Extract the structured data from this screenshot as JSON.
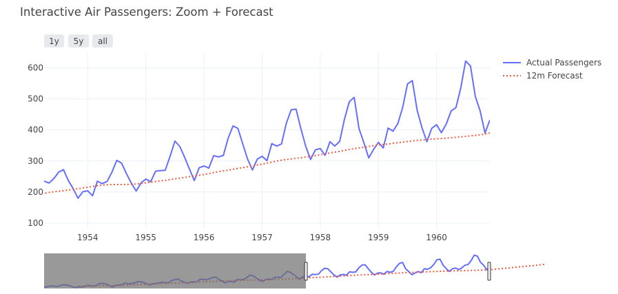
{
  "title": "Interactive Air Passengers: Zoom + Forecast",
  "range_buttons": [
    "1y",
    "5y",
    "all"
  ],
  "legend": [
    {
      "label": "Actual Passengers",
      "color": "#636efa",
      "dash": "solid"
    },
    {
      "label": "12m Forecast",
      "color": "#ef553b",
      "dash": "dot"
    }
  ],
  "chart_data": {
    "type": "line",
    "title": "Interactive Air Passengers: Zoom + Forecast",
    "x_start": "1949-01",
    "x_step": "month",
    "visible_x_range": [
      "1953-04",
      "1960-12"
    ],
    "ylim": [
      80,
      650
    ],
    "yticks": [
      100,
      200,
      300,
      400,
      500,
      600
    ],
    "xticks": [
      "1954",
      "1955",
      "1956",
      "1957",
      "1958",
      "1959",
      "1960"
    ],
    "grid": true,
    "legend_position": "top-right",
    "rangeslider": true,
    "rangeslider_selection": [
      "1949-01",
      "1956-01"
    ],
    "series": [
      {
        "name": "Actual Passengers",
        "color": "#636efa",
        "values": [
          112,
          118,
          132,
          129,
          121,
          135,
          148,
          148,
          136,
          119,
          104,
          118,
          115,
          126,
          141,
          135,
          125,
          149,
          170,
          170,
          158,
          133,
          114,
          140,
          145,
          150,
          178,
          163,
          172,
          178,
          199,
          199,
          184,
          162,
          146,
          166,
          171,
          180,
          193,
          181,
          183,
          218,
          230,
          242,
          209,
          191,
          172,
          194,
          196,
          196,
          236,
          235,
          229,
          243,
          264,
          272,
          237,
          211,
          180,
          201,
          204,
          188,
          235,
          227,
          234,
          264,
          302,
          293,
          259,
          229,
          203,
          229,
          242,
          233,
          267,
          269,
          270,
          315,
          364,
          347,
          312,
          274,
          237,
          278,
          284,
          277,
          317,
          313,
          318,
          374,
          413,
          405,
          355,
          306,
          271,
          306,
          315,
          301,
          356,
          348,
          355,
          422,
          465,
          467,
          404,
          347,
          305,
          336,
          340,
          318,
          362,
          348,
          363,
          435,
          491,
          505,
          404,
          359,
          310,
          337,
          360,
          342,
          406,
          396,
          420,
          472,
          548,
          559,
          463,
          407,
          362,
          405,
          417,
          391,
          419,
          461,
          472,
          535,
          622,
          606,
          508,
          461,
          390,
          432
        ]
      },
      {
        "name": "12m Forecast",
        "color": "#ef553b",
        "offset": 11,
        "values": [
          126.7,
          126.9,
          127.6,
          128.3,
          128.8,
          129.8,
          131.0,
          132.2,
          133.1,
          133.7,
          134.4,
          135.3,
          136.6,
          138.3,
          140.5,
          142.8,
          145.7,
          148.6,
          151.2,
          153.5,
          155.4,
          157.4,
          159.5,
          161.4,
          163.3,
          165.5,
          167.6,
          169.8,
          171.9,
          174.0,
          175.8,
          177.2,
          178.5,
          180.1,
          181.8,
          183.5,
          185.6,
          188.1,
          190.4,
          193.2,
          195.9,
          198.6,
          200.8,
          202.6,
          204.5,
          206.4,
          208.3,
          210.6,
          213.3,
          215.4,
          217.9,
          220.3,
          222.1,
          223.5,
          224.0,
          224.2,
          224.1,
          224.4,
          225.0,
          226.0,
          227.5,
          229.8,
          232.0,
          233.8,
          235.8,
          237.9,
          240.2,
          242.6,
          244.5,
          246.8,
          249.6,
          251.8,
          254.0,
          256.5,
          259.5,
          262.7,
          265.5,
          268.0,
          270.6,
          273.3,
          276.2,
          278.6,
          281.5,
          284.5,
          287.2,
          289.7,
          293.0,
          296.5,
          299.8,
          302.7,
          304.9,
          306.6,
          308.6,
          310.5,
          312.6,
          315.0,
          317.3,
          320.0,
          322.8,
          325.9,
          328.6,
          331.0,
          334.2,
          337.2,
          339.8,
          342.2,
          344.0,
          347.1,
          349.1,
          351.2,
          353.0,
          354.8,
          357.0,
          358.9,
          360.7,
          362.8,
          364.8,
          366.5,
          367.3,
          369.2,
          370.5,
          371.5,
          372.5,
          373.5,
          374.8,
          376.3,
          377.8,
          379.2,
          381.0,
          382.7,
          384.3,
          386.7,
          390.2,
          394.3,
          398.8,
          403.8,
          408.6,
          413.2,
          417.8,
          422.5,
          427.5,
          432.1,
          436.5,
          440.8,
          445.5,
          451.0,
          456.0,
          461.2,
          467.0,
          472.0,
          476.0
        ]
      }
    ]
  }
}
